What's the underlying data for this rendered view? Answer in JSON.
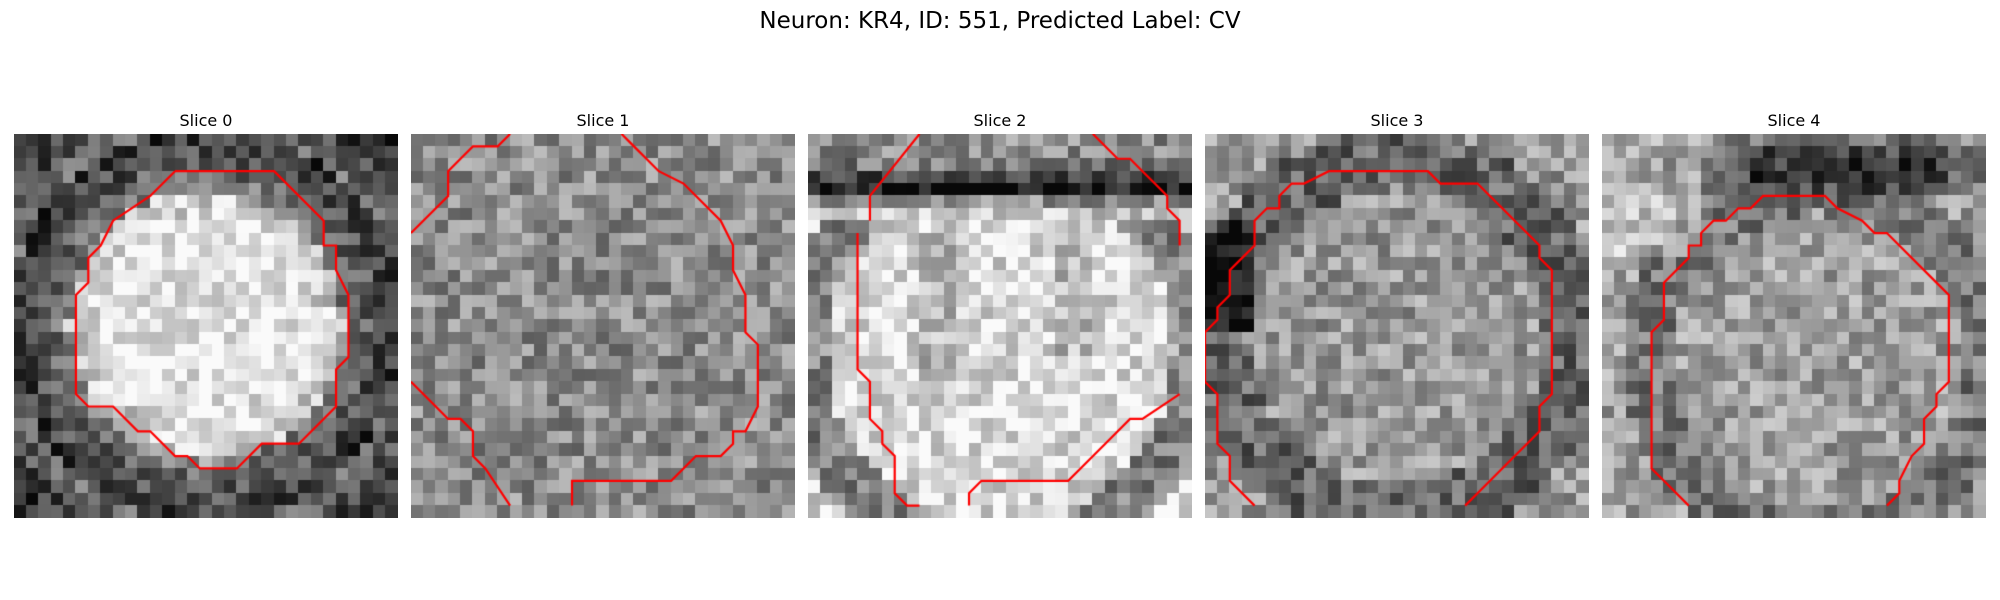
{
  "figure": {
    "title": "Neuron: KR4, ID: 551, Predicted Label: CV",
    "contour_color": "#ff0000",
    "colormap": "grayscale"
  },
  "slices": [
    {
      "title": "Slice 0"
    },
    {
      "title": "Slice 1"
    },
    {
      "title": "Slice 2"
    },
    {
      "title": "Slice 3"
    },
    {
      "title": "Slice 4"
    }
  ]
}
